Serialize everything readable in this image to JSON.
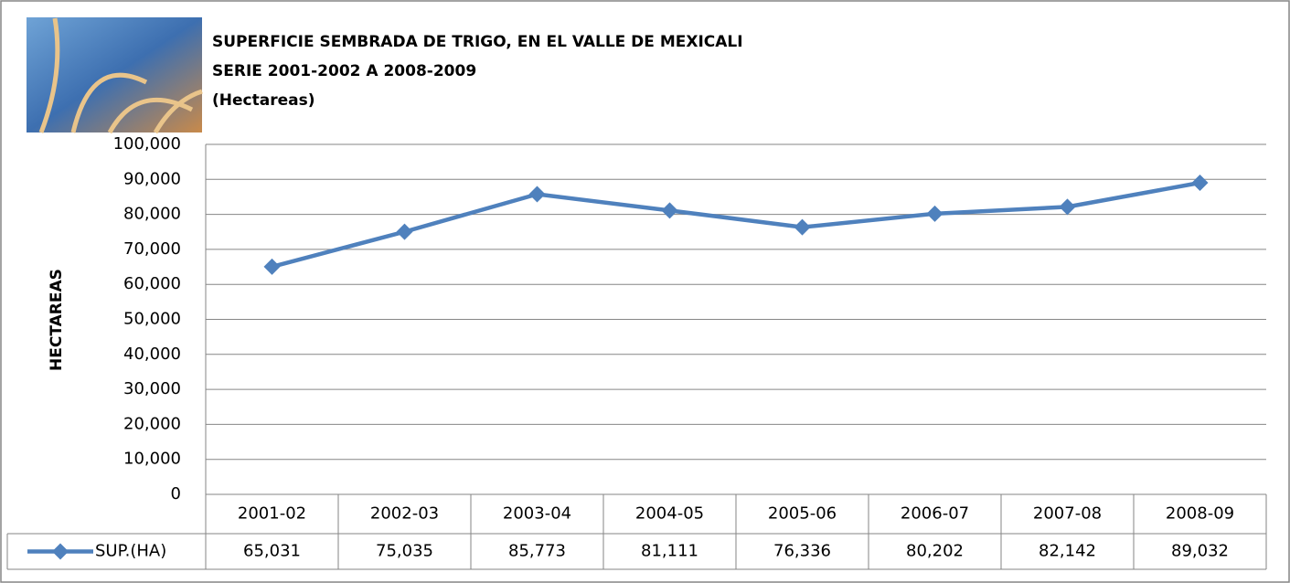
{
  "chart_data": {
    "type": "line",
    "title": "SUPERFICIE SEMBRADA DE TRIGO, EN EL VALLE DE MEXICALI",
    "subtitle": "SERIE 2001-2002 A 2008-2009",
    "units": "(Hectareas)",
    "y_label": "HECTAREAS",
    "categories": [
      "2001-02",
      "2002-03",
      "2003-04",
      "2004-05",
      "2005-06",
      "2006-07",
      "2007-08",
      "2008-09"
    ],
    "series": [
      {
        "name": "SUP.(HA)",
        "color": "#4f81bd",
        "values": [
          65031,
          75035,
          85773,
          81111,
          76336,
          80202,
          82142,
          89032
        ],
        "value_labels": [
          "65,031",
          "75,035",
          "85,773",
          "81,111",
          "76,336",
          "80,202",
          "82,142",
          "89,032"
        ]
      }
    ],
    "ylim": [
      0,
      100000
    ],
    "yticks": [
      0,
      {
        "value": 10000,
        "label": "10,000"
      },
      {
        "value": 20000,
        "label": "20,000"
      },
      {
        "value": 30000,
        "label": "30,000"
      },
      {
        "value": 40000,
        "label": "40,000"
      },
      {
        "value": 50000,
        "label": "50,000"
      },
      {
        "value": 60000,
        "label": "60,000"
      },
      {
        "value": 70000,
        "label": "70,000"
      },
      {
        "value": 80000,
        "label": "80,000"
      },
      {
        "value": 90000,
        "label": "90,000"
      },
      {
        "value": 100000,
        "label": "100,000"
      }
    ],
    "grid": true
  }
}
